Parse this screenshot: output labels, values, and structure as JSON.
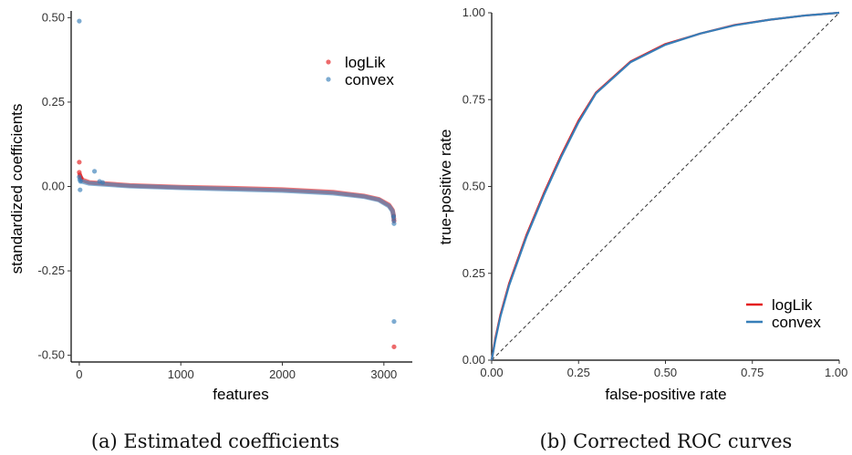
{
  "colors": {
    "logLik": "#e41a1c",
    "convex": "#377eb8",
    "diagonal": "#333333"
  },
  "captions": {
    "a": "(a) Estimated coefficients",
    "b": "(b) Corrected ROC curves"
  },
  "chart_data": [
    {
      "type": "scatter",
      "xlabel": "features",
      "ylabel": "standardized coefficients",
      "xlim": [
        -80,
        3280
      ],
      "ylim": [
        -0.52,
        0.52
      ],
      "x_ticks": [
        0,
        1000,
        2000,
        3000
      ],
      "x_tick_labels": [
        "0",
        "1000",
        "2000",
        "3000"
      ],
      "y_ticks": [
        -0.5,
        -0.25,
        0,
        0.25,
        0.5
      ],
      "y_tick_labels": [
        "-0.50",
        "-0.25",
        "0.00",
        "0.25",
        "0.50"
      ],
      "legend": "top-right",
      "grid": false,
      "series": [
        {
          "name": "logLik",
          "points": [
            [
              0,
              0.072
            ],
            [
              0,
              0.042
            ],
            [
              5,
              0.035
            ],
            [
              10,
              0.03
            ],
            [
              15,
              0.026
            ],
            [
              20,
              0.024
            ],
            [
              3100,
              -0.475
            ],
            [
              3100,
              -0.102
            ],
            [
              3098,
              -0.095
            ],
            [
              3095,
              -0.088
            ]
          ],
          "trend": [
            [
              25,
              0.02
            ],
            [
              100,
              0.012
            ],
            [
              500,
              0.003
            ],
            [
              1000,
              -0.002
            ],
            [
              1500,
              -0.005
            ],
            [
              2000,
              -0.009
            ],
            [
              2500,
              -0.017
            ],
            [
              2800,
              -0.028
            ],
            [
              2950,
              -0.038
            ],
            [
              3050,
              -0.055
            ],
            [
              3085,
              -0.07
            ],
            [
              3095,
              -0.085
            ]
          ]
        },
        {
          "name": "convex",
          "points": [
            [
              0,
              0.49
            ],
            [
              0,
              0.028
            ],
            [
              5,
              0.02
            ],
            [
              8,
              -0.01
            ],
            [
              12,
              0.015
            ],
            [
              150,
              0.045
            ],
            [
              200,
              0.015
            ],
            [
              230,
              0.012
            ],
            [
              3100,
              -0.4
            ],
            [
              3100,
              -0.11
            ],
            [
              3098,
              -0.1
            ],
            [
              3095,
              -0.09
            ]
          ],
          "trend": [
            [
              25,
              0.015
            ],
            [
              100,
              0.009
            ],
            [
              500,
              0.001
            ],
            [
              1000,
              -0.004
            ],
            [
              1500,
              -0.008
            ],
            [
              2000,
              -0.012
            ],
            [
              2500,
              -0.02
            ],
            [
              2800,
              -0.03
            ],
            [
              2950,
              -0.04
            ],
            [
              3050,
              -0.058
            ],
            [
              3085,
              -0.073
            ],
            [
              3095,
              -0.088
            ]
          ]
        }
      ]
    },
    {
      "type": "line",
      "xlabel": "false-positive rate",
      "ylabel": "true-positive rate",
      "xlim": [
        0,
        1
      ],
      "ylim": [
        0,
        1
      ],
      "x_ticks": [
        0,
        0.25,
        0.5,
        0.75,
        1
      ],
      "x_tick_labels": [
        "0.00",
        "0.25",
        "0.50",
        "0.75",
        "1.00"
      ],
      "y_ticks": [
        0,
        0.25,
        0.5,
        0.75,
        1
      ],
      "y_tick_labels": [
        "0.00",
        "0.25",
        "0.50",
        "0.75",
        "1.00"
      ],
      "legend": "bottom-right",
      "grid": false,
      "reference_line": [
        [
          0,
          0
        ],
        [
          1,
          1
        ]
      ],
      "series": [
        {
          "name": "logLik",
          "x": [
            0,
            0.01,
            0.025,
            0.05,
            0.1,
            0.15,
            0.2,
            0.25,
            0.3,
            0.4,
            0.5,
            0.6,
            0.7,
            0.8,
            0.9,
            1.0
          ],
          "y": [
            0,
            0.06,
            0.13,
            0.22,
            0.36,
            0.48,
            0.59,
            0.69,
            0.77,
            0.86,
            0.91,
            0.94,
            0.965,
            0.98,
            0.992,
            1.0
          ]
        },
        {
          "name": "convex",
          "x": [
            0,
            0.01,
            0.025,
            0.05,
            0.1,
            0.15,
            0.2,
            0.25,
            0.3,
            0.4,
            0.5,
            0.6,
            0.7,
            0.8,
            0.9,
            1.0
          ],
          "y": [
            0,
            0.055,
            0.125,
            0.215,
            0.355,
            0.475,
            0.585,
            0.685,
            0.768,
            0.858,
            0.908,
            0.94,
            0.964,
            0.98,
            0.992,
            1.0
          ]
        }
      ]
    }
  ]
}
